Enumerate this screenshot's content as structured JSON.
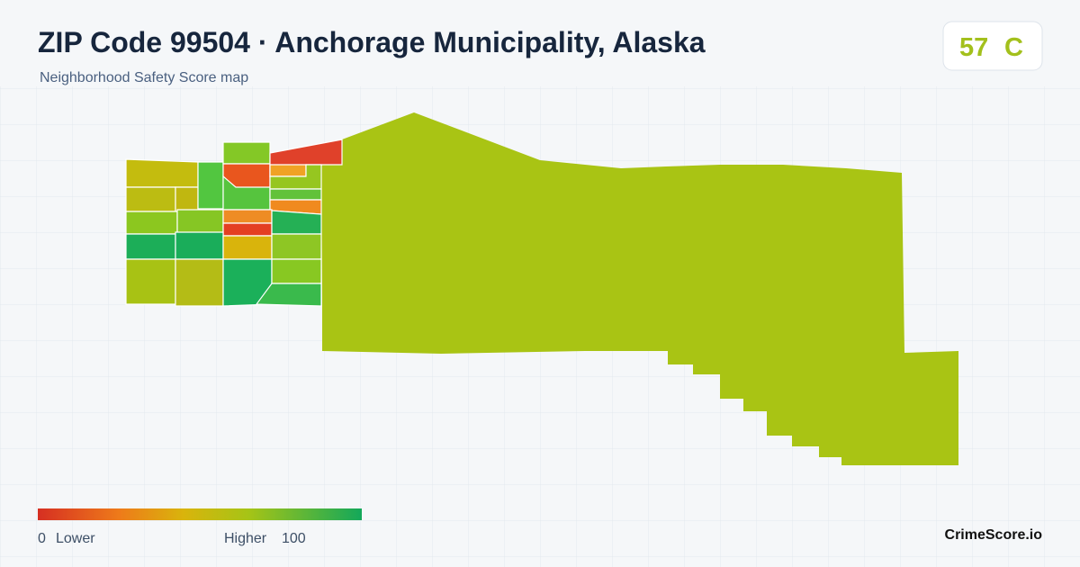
{
  "header": {
    "title": "ZIP Code 99504 · Anchorage Municipality, Alaska",
    "subtitle": "Neighborhood Safety Score map",
    "score": "57",
    "grade": "C"
  },
  "legend": {
    "min": "0",
    "low_label": "Lower",
    "high_label": "Higher",
    "max": "100"
  },
  "footer": {
    "brand": "CrimeScore.io"
  }
}
